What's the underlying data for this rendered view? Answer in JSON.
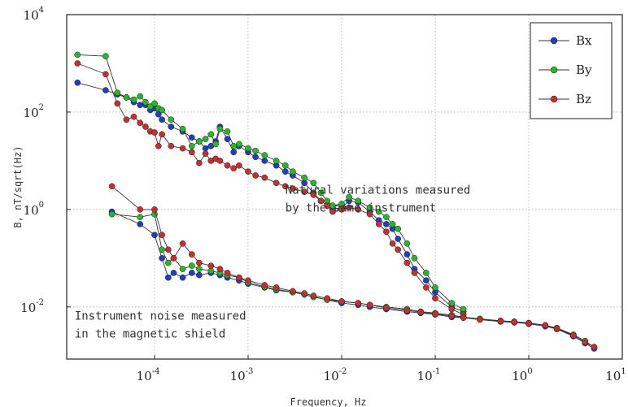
{
  "chart_data": {
    "type": "scatter",
    "xlabel": "Frequency, Hz",
    "ylabel": "B, nT/sqrt(Hz)",
    "x_scale": "log",
    "y_scale": "log",
    "xlim": [
      1.15e-05,
      10
    ],
    "ylim": [
      0.00085,
      10000
    ],
    "x_ticks": [
      {
        "base": "10",
        "exp": "-4",
        "value": 0.0001
      },
      {
        "base": "10",
        "exp": "-3",
        "value": 0.001
      },
      {
        "base": "10",
        "exp": "-2",
        "value": 0.01
      },
      {
        "base": "10",
        "exp": "-1",
        "value": 0.1
      },
      {
        "base": "10",
        "exp": "0",
        "value": 1
      },
      {
        "base": "10",
        "exp": "1",
        "value": 10
      }
    ],
    "y_ticks": [
      {
        "base": "10",
        "exp": "-2",
        "value": 0.01
      },
      {
        "base": "10",
        "exp": "0",
        "value": 1
      },
      {
        "base": "10",
        "exp": "2",
        "value": 100
      },
      {
        "base": "10",
        "exp": "4",
        "value": 10000
      }
    ],
    "grid": true,
    "legend": {
      "position": "top-right",
      "entries": [
        {
          "name": "Bx",
          "color": "#1f3fbf"
        },
        {
          "name": "By",
          "color": "#2bb52b"
        },
        {
          "name": "Bz",
          "color": "#c43030"
        }
      ]
    },
    "annotations": [
      {
        "lines": [
          "Natural variations measured",
          "by the same instrument"
        ],
        "at": [
          0.0025,
          2.1
        ]
      },
      {
        "lines": [
          "Instrument noise measured",
          "in the magnetic shield"
        ],
        "at": [
          1.4e-05,
          0.0055
        ]
      }
    ],
    "series": [
      {
        "name": "Bx",
        "group": "natural",
        "color": "#1f3fbf",
        "points": [
          [
            1.5e-05,
            400
          ],
          [
            3e-05,
            280
          ],
          [
            4e-05,
            230
          ],
          [
            5e-05,
            200
          ],
          [
            6e-05,
            160
          ],
          [
            7e-05,
            140
          ],
          [
            8e-05,
            140
          ],
          [
            9e-05,
            110
          ],
          [
            0.0001,
            120
          ],
          [
            0.00011,
            90
          ],
          [
            0.00012,
            70
          ],
          [
            0.00015,
            50
          ],
          [
            0.0002,
            40
          ],
          [
            0.00025,
            30
          ],
          [
            0.0003,
            25
          ],
          [
            0.00035,
            18
          ],
          [
            0.0004,
            20
          ],
          [
            0.00045,
            25
          ],
          [
            0.0005,
            50
          ],
          [
            0.0006,
            28
          ],
          [
            0.0007,
            15
          ],
          [
            0.0008,
            20
          ],
          [
            0.001,
            15
          ],
          [
            0.0012,
            12
          ],
          [
            0.0015,
            10
          ],
          [
            0.002,
            8
          ],
          [
            0.0025,
            6
          ],
          [
            0.003,
            5
          ],
          [
            0.004,
            3.5
          ],
          [
            0.005,
            2.2
          ],
          [
            0.006,
            1.5
          ],
          [
            0.007,
            1.2
          ],
          [
            0.008,
            1.0
          ],
          [
            0.01,
            1.1
          ],
          [
            0.012,
            1.5
          ],
          [
            0.015,
            1.4
          ],
          [
            0.02,
            0.9
          ],
          [
            0.025,
            0.6
          ],
          [
            0.03,
            0.5
          ],
          [
            0.035,
            0.4
          ],
          [
            0.04,
            0.25
          ],
          [
            0.05,
            0.12
          ],
          [
            0.06,
            0.06
          ],
          [
            0.08,
            0.035
          ],
          [
            0.1,
            0.02
          ],
          [
            0.15,
            0.01
          ],
          [
            0.2,
            0.008
          ]
        ]
      },
      {
        "name": "By",
        "group": "natural",
        "color": "#2bb52b",
        "points": [
          [
            1.5e-05,
            1500
          ],
          [
            3e-05,
            1400
          ],
          [
            4e-05,
            250
          ],
          [
            5e-05,
            200
          ],
          [
            6e-05,
            180
          ],
          [
            7e-05,
            210
          ],
          [
            8e-05,
            160
          ],
          [
            9e-05,
            130
          ],
          [
            0.0001,
            150
          ],
          [
            0.00011,
            120
          ],
          [
            0.00012,
            110
          ],
          [
            0.00015,
            70
          ],
          [
            0.0002,
            45
          ],
          [
            0.00025,
            20
          ],
          [
            0.0003,
            25
          ],
          [
            0.00035,
            28
          ],
          [
            0.0004,
            35
          ],
          [
            0.00045,
            22
          ],
          [
            0.0005,
            45
          ],
          [
            0.0006,
            40
          ],
          [
            0.0007,
            20
          ],
          [
            0.0008,
            22
          ],
          [
            0.001,
            18
          ],
          [
            0.0012,
            16
          ],
          [
            0.0015,
            13
          ],
          [
            0.002,
            10
          ],
          [
            0.0025,
            8
          ],
          [
            0.003,
            6
          ],
          [
            0.004,
            4.5
          ],
          [
            0.005,
            3.5
          ],
          [
            0.006,
            2.2
          ],
          [
            0.007,
            1.5
          ],
          [
            0.008,
            1.2
          ],
          [
            0.01,
            1.3
          ],
          [
            0.012,
            1.8
          ],
          [
            0.015,
            1.5
          ],
          [
            0.02,
            1.1
          ],
          [
            0.025,
            0.9
          ],
          [
            0.03,
            0.7
          ],
          [
            0.035,
            0.5
          ],
          [
            0.04,
            0.4
          ],
          [
            0.05,
            0.2
          ],
          [
            0.06,
            0.1
          ],
          [
            0.08,
            0.05
          ],
          [
            0.1,
            0.025
          ],
          [
            0.15,
            0.012
          ],
          [
            0.2,
            0.009
          ]
        ]
      },
      {
        "name": "Bz",
        "group": "natural",
        "color": "#c43030",
        "points": [
          [
            1.5e-05,
            1000
          ],
          [
            3e-05,
            600
          ],
          [
            4e-05,
            150
          ],
          [
            5e-05,
            70
          ],
          [
            6e-05,
            80
          ],
          [
            7e-05,
            60
          ],
          [
            8e-05,
            50
          ],
          [
            9e-05,
            40
          ],
          [
            0.0001,
            38
          ],
          [
            0.00011,
            20
          ],
          [
            0.00012,
            35
          ],
          [
            0.00015,
            20
          ],
          [
            0.0002,
            18
          ],
          [
            0.00025,
            15
          ],
          [
            0.0003,
            9
          ],
          [
            0.00035,
            14
          ],
          [
            0.0004,
            10
          ],
          [
            0.00045,
            11
          ],
          [
            0.0005,
            10
          ],
          [
            0.0006,
            8
          ],
          [
            0.0007,
            7
          ],
          [
            0.0008,
            8
          ],
          [
            0.001,
            6
          ],
          [
            0.0012,
            5
          ],
          [
            0.0015,
            4.5
          ],
          [
            0.002,
            3.5
          ],
          [
            0.0025,
            3
          ],
          [
            0.003,
            2.7
          ],
          [
            0.004,
            2.3
          ],
          [
            0.005,
            2
          ],
          [
            0.006,
            1.5
          ],
          [
            0.007,
            1.2
          ],
          [
            0.008,
            0.9
          ],
          [
            0.01,
            1.0
          ],
          [
            0.012,
            1.1
          ],
          [
            0.015,
            1.0
          ],
          [
            0.02,
            0.8
          ],
          [
            0.025,
            0.5
          ],
          [
            0.03,
            0.35
          ],
          [
            0.035,
            0.2
          ],
          [
            0.04,
            0.15
          ],
          [
            0.05,
            0.08
          ],
          [
            0.06,
            0.05
          ],
          [
            0.08,
            0.025
          ],
          [
            0.1,
            0.015
          ],
          [
            0.15,
            0.009
          ],
          [
            0.2,
            0.007
          ]
        ]
      },
      {
        "name": "Bx",
        "group": "noise",
        "color": "#1f3fbf",
        "points": [
          [
            3.5e-05,
            0.9
          ],
          [
            7e-05,
            0.5
          ],
          [
            0.0001,
            0.3
          ],
          [
            0.00012,
            0.1
          ],
          [
            0.00014,
            0.04
          ],
          [
            0.00016,
            0.05
          ],
          [
            0.0002,
            0.04
          ],
          [
            0.00025,
            0.05
          ],
          [
            0.0003,
            0.045
          ],
          [
            0.0004,
            0.05
          ],
          [
            0.0005,
            0.045
          ],
          [
            0.0006,
            0.04
          ],
          [
            0.0008,
            0.035
          ],
          [
            0.001,
            0.03
          ],
          [
            0.0015,
            0.025
          ],
          [
            0.002,
            0.022
          ],
          [
            0.003,
            0.02
          ],
          [
            0.004,
            0.018
          ],
          [
            0.005,
            0.016
          ],
          [
            0.007,
            0.014
          ],
          [
            0.01,
            0.012
          ],
          [
            0.015,
            0.011
          ],
          [
            0.02,
            0.01
          ],
          [
            0.03,
            0.009
          ],
          [
            0.05,
            0.008
          ],
          [
            0.07,
            0.0075
          ],
          [
            0.1,
            0.007
          ],
          [
            0.15,
            0.0062
          ],
          [
            0.2,
            0.006
          ],
          [
            0.3,
            0.0055
          ],
          [
            0.5,
            0.005
          ],
          [
            0.7,
            0.0048
          ],
          [
            1,
            0.0045
          ],
          [
            1.5,
            0.004
          ],
          [
            2,
            0.0035
          ],
          [
            3,
            0.0025
          ],
          [
            4,
            0.0018
          ],
          [
            5,
            0.0014
          ]
        ]
      },
      {
        "name": "By",
        "group": "noise",
        "color": "#2bb52b",
        "points": [
          [
            3.5e-05,
            0.8
          ],
          [
            7e-05,
            0.7
          ],
          [
            0.0001,
            0.8
          ],
          [
            0.00012,
            0.15
          ],
          [
            0.00014,
            0.08
          ],
          [
            0.00016,
            0.1
          ],
          [
            0.0002,
            0.06
          ],
          [
            0.00025,
            0.07
          ],
          [
            0.0003,
            0.06
          ],
          [
            0.0004,
            0.055
          ],
          [
            0.0005,
            0.05
          ],
          [
            0.0006,
            0.045
          ],
          [
            0.0008,
            0.04
          ],
          [
            0.001,
            0.032
          ],
          [
            0.0015,
            0.026
          ],
          [
            0.002,
            0.023
          ],
          [
            0.003,
            0.02
          ],
          [
            0.004,
            0.018
          ],
          [
            0.005,
            0.016
          ],
          [
            0.007,
            0.014
          ],
          [
            0.01,
            0.013
          ],
          [
            0.015,
            0.012
          ],
          [
            0.02,
            0.011
          ],
          [
            0.03,
            0.01
          ],
          [
            0.05,
            0.009
          ],
          [
            0.07,
            0.008
          ],
          [
            0.1,
            0.0075
          ],
          [
            0.15,
            0.0068
          ],
          [
            0.2,
            0.0062
          ],
          [
            0.3,
            0.0057
          ],
          [
            0.5,
            0.0052
          ],
          [
            0.7,
            0.005
          ],
          [
            1,
            0.0047
          ],
          [
            1.5,
            0.0042
          ],
          [
            2,
            0.0037
          ],
          [
            3,
            0.0027
          ],
          [
            4,
            0.002
          ],
          [
            5,
            0.0015
          ]
        ]
      },
      {
        "name": "Bz",
        "group": "noise",
        "color": "#c43030",
        "points": [
          [
            3.5e-05,
            3
          ],
          [
            7e-05,
            1.0
          ],
          [
            0.0001,
            1.0
          ],
          [
            0.00012,
            0.3
          ],
          [
            0.00014,
            0.15
          ],
          [
            0.00016,
            0.1
          ],
          [
            0.0002,
            0.2
          ],
          [
            0.00025,
            0.12
          ],
          [
            0.0003,
            0.08
          ],
          [
            0.0004,
            0.07
          ],
          [
            0.0005,
            0.06
          ],
          [
            0.0006,
            0.05
          ],
          [
            0.0008,
            0.04
          ],
          [
            0.001,
            0.035
          ],
          [
            0.0015,
            0.028
          ],
          [
            0.002,
            0.025
          ],
          [
            0.003,
            0.021
          ],
          [
            0.004,
            0.019
          ],
          [
            0.005,
            0.017
          ],
          [
            0.007,
            0.015
          ],
          [
            0.01,
            0.013
          ],
          [
            0.015,
            0.012
          ],
          [
            0.02,
            0.011
          ],
          [
            0.03,
            0.0095
          ],
          [
            0.05,
            0.0085
          ],
          [
            0.07,
            0.0078
          ],
          [
            0.1,
            0.0072
          ],
          [
            0.15,
            0.0065
          ],
          [
            0.2,
            0.006
          ],
          [
            0.3,
            0.0055
          ],
          [
            0.5,
            0.0051
          ],
          [
            0.7,
            0.0049
          ],
          [
            1,
            0.0046
          ],
          [
            1.5,
            0.0042
          ],
          [
            2,
            0.0036
          ],
          [
            3,
            0.0026
          ],
          [
            4,
            0.0019
          ],
          [
            5,
            0.0015
          ]
        ]
      }
    ]
  }
}
